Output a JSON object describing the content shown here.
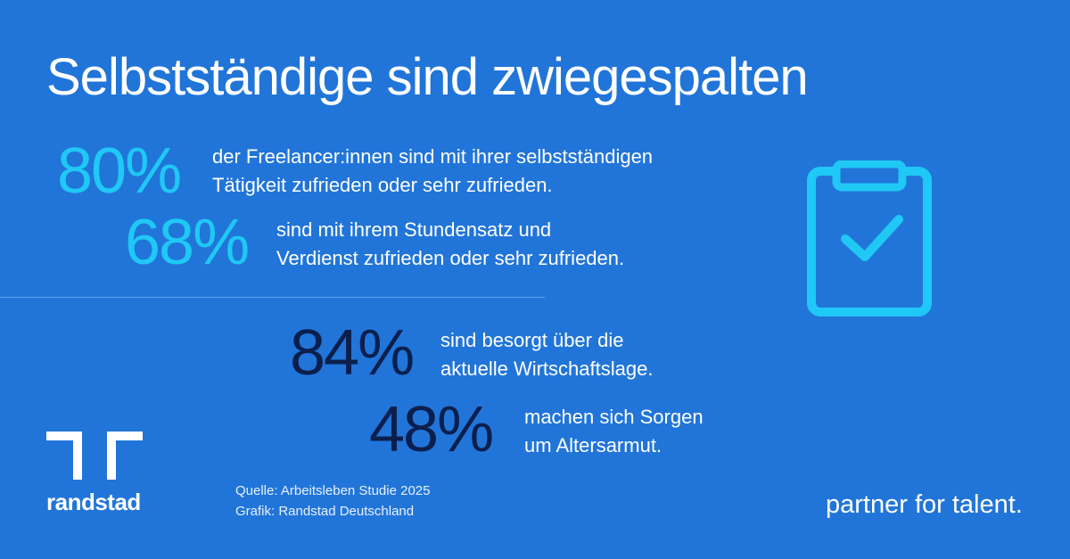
{
  "title": "Selbstständige sind zwiegespalten",
  "stats": [
    {
      "value": "80%",
      "text_line1": "der Freelancer:innen sind mit ihrer selbstständigen",
      "text_line2": "Tätigkeit zufrieden oder sehr zufrieden.",
      "color": "#1fc8f5"
    },
    {
      "value": "68%",
      "text_line1": "sind mit ihrem Stundensatz und",
      "text_line2": "Verdienst zufrieden oder sehr zufrieden.",
      "color": "#1fc8f5"
    },
    {
      "value": "84%",
      "text_line1": "sind besorgt über die",
      "text_line2": "aktuelle Wirtschaftslage.",
      "color": "#0b1f4d"
    },
    {
      "value": "48%",
      "text_line1": "machen sich Sorgen",
      "text_line2": "um Altersarmut.",
      "color": "#0b1f4d"
    }
  ],
  "source": {
    "line1": "Quelle: Arbeitsleben Studie 2025",
    "line2": "Grafik: Randstad Deutschland"
  },
  "brand": {
    "name": "randstad",
    "tagline": "partner for talent."
  },
  "icons": {
    "clipboard": "clipboard-check-icon",
    "logo": "randstad-logo-icon"
  },
  "colors": {
    "background": "#2175d9",
    "accent": "#1fc8f5",
    "dark": "#0b1f4d"
  }
}
